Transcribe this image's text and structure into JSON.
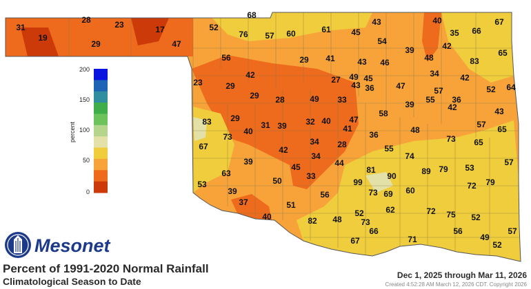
{
  "map": {
    "title": "Percent of 1991-2020 Normal Rainfall",
    "subtitle": "Climatological Season to Date",
    "date_range": "Dec 1, 2025 through Mar 11, 2026",
    "credit": "Created 4:52:28 AM March 12, 2026 CDT. Copyright 2026",
    "logo_text": "Mesonet",
    "logo_icon": "mesonet-emblem-icon"
  },
  "legend": {
    "label": "percent",
    "ticks": [
      "200",
      "150",
      "100",
      "50",
      "0"
    ],
    "colors": [
      "#0a14e0",
      "#1e64b4",
      "#2f8f9f",
      "#3fae48",
      "#6cc35c",
      "#b5d58d",
      "#e3e1a8",
      "#efcd3c",
      "#f7a33a",
      "#ee6a1c",
      "#cc3a0a"
    ]
  },
  "stations": [
    {
      "name": "s1",
      "value": "31"
    },
    {
      "name": "s2",
      "value": "19"
    },
    {
      "name": "s3",
      "value": "28"
    },
    {
      "name": "s4",
      "value": "23"
    },
    {
      "name": "s5",
      "value": "29"
    },
    {
      "name": "s6",
      "value": "17"
    },
    {
      "name": "s7",
      "value": "47"
    },
    {
      "name": "s8",
      "value": "52"
    },
    {
      "name": "s9",
      "value": "68"
    },
    {
      "name": "s10",
      "value": "76"
    },
    {
      "name": "s11",
      "value": "57"
    },
    {
      "name": "s12",
      "value": "60"
    },
    {
      "name": "s13",
      "value": "61"
    },
    {
      "name": "s14",
      "value": "45"
    },
    {
      "name": "s15",
      "value": "43"
    },
    {
      "name": "s16",
      "value": "40"
    },
    {
      "name": "s17",
      "value": "35"
    },
    {
      "name": "s18",
      "value": "66"
    },
    {
      "name": "s19",
      "value": "67"
    },
    {
      "name": "s20",
      "value": "54"
    },
    {
      "name": "s21",
      "value": "42"
    },
    {
      "name": "s22",
      "value": "65"
    },
    {
      "name": "s23",
      "value": "56"
    },
    {
      "name": "s24",
      "value": "29"
    },
    {
      "name": "s25",
      "value": "41"
    },
    {
      "name": "s26",
      "value": "43"
    },
    {
      "name": "s27",
      "value": "46"
    },
    {
      "name": "s28",
      "value": "39"
    },
    {
      "name": "s29",
      "value": "48"
    },
    {
      "name": "s30",
      "value": "83"
    },
    {
      "name": "s31",
      "value": "42"
    },
    {
      "name": "s32",
      "value": "27"
    },
    {
      "name": "s33",
      "value": "49"
    },
    {
      "name": "s34",
      "value": "45"
    },
    {
      "name": "s35",
      "value": "43"
    },
    {
      "name": "s36",
      "value": "36"
    },
    {
      "name": "s37",
      "value": "34"
    },
    {
      "name": "s38",
      "value": "42"
    },
    {
      "name": "s39",
      "value": "52"
    },
    {
      "name": "s40",
      "value": "64"
    },
    {
      "name": "s41",
      "value": "23"
    },
    {
      "name": "s42",
      "value": "29"
    },
    {
      "name": "s43",
      "value": "29"
    },
    {
      "name": "s44",
      "value": "28"
    },
    {
      "name": "s45",
      "value": "49"
    },
    {
      "name": "s46",
      "value": "33"
    },
    {
      "name": "s47",
      "value": "47"
    },
    {
      "name": "s48",
      "value": "57"
    },
    {
      "name": "s49",
      "value": "55"
    },
    {
      "name": "s50",
      "value": "36"
    },
    {
      "name": "s51",
      "value": "39"
    },
    {
      "name": "s52",
      "value": "42"
    },
    {
      "name": "s53",
      "value": "58"
    },
    {
      "name": "s54",
      "value": "43"
    },
    {
      "name": "s55",
      "value": "83"
    },
    {
      "name": "s56",
      "value": "29"
    },
    {
      "name": "s57",
      "value": "31"
    },
    {
      "name": "s58",
      "value": "39"
    },
    {
      "name": "s59",
      "value": "32"
    },
    {
      "name": "s60",
      "value": "40"
    },
    {
      "name": "s61",
      "value": "47"
    },
    {
      "name": "s62",
      "value": "41"
    },
    {
      "name": "s63",
      "value": "57"
    },
    {
      "name": "s64",
      "value": "65"
    },
    {
      "name": "s65",
      "value": "73"
    },
    {
      "name": "s66",
      "value": "40"
    },
    {
      "name": "s67",
      "value": "48"
    },
    {
      "name": "s68",
      "value": "36"
    },
    {
      "name": "s69",
      "value": "67"
    },
    {
      "name": "s70",
      "value": "34"
    },
    {
      "name": "s71",
      "value": "28"
    },
    {
      "name": "s72",
      "value": "73"
    },
    {
      "name": "s73",
      "value": "65"
    },
    {
      "name": "s74",
      "value": "42"
    },
    {
      "name": "s75",
      "value": "55"
    },
    {
      "name": "s76",
      "value": "34"
    },
    {
      "name": "s77",
      "value": "39"
    },
    {
      "name": "s78",
      "value": "45"
    },
    {
      "name": "s79",
      "value": "44"
    },
    {
      "name": "s80",
      "value": "74"
    },
    {
      "name": "s81",
      "value": "57"
    },
    {
      "name": "s82",
      "value": "63"
    },
    {
      "name": "s83",
      "value": "33"
    },
    {
      "name": "s84",
      "value": "81"
    },
    {
      "name": "s85",
      "value": "89"
    },
    {
      "name": "s86",
      "value": "79"
    },
    {
      "name": "s87",
      "value": "53"
    },
    {
      "name": "s88",
      "value": "53"
    },
    {
      "name": "s89",
      "value": "50"
    },
    {
      "name": "s90",
      "value": "99"
    },
    {
      "name": "s91",
      "value": "90"
    },
    {
      "name": "s92",
      "value": "60"
    },
    {
      "name": "s93",
      "value": "72"
    },
    {
      "name": "s94",
      "value": "79"
    },
    {
      "name": "s95",
      "value": "39"
    },
    {
      "name": "s96",
      "value": "56"
    },
    {
      "name": "s97",
      "value": "73"
    },
    {
      "name": "s98",
      "value": "69"
    },
    {
      "name": "s99",
      "value": "37"
    },
    {
      "name": "s100",
      "value": "51"
    },
    {
      "name": "s101",
      "value": "62"
    },
    {
      "name": "s102",
      "value": "40"
    },
    {
      "name": "s103",
      "value": "82"
    },
    {
      "name": "s104",
      "value": "48"
    },
    {
      "name": "s105",
      "value": "52"
    },
    {
      "name": "s106",
      "value": "72"
    },
    {
      "name": "s107",
      "value": "75"
    },
    {
      "name": "s108",
      "value": "52"
    },
    {
      "name": "s109",
      "value": "73"
    },
    {
      "name": "s110",
      "value": "66"
    },
    {
      "name": "s111",
      "value": "56"
    },
    {
      "name": "s112",
      "value": "57"
    },
    {
      "name": "s113",
      "value": "49"
    },
    {
      "name": "s114",
      "value": "67"
    },
    {
      "name": "s115",
      "value": "71"
    },
    {
      "name": "s116",
      "value": "52"
    }
  ]
}
